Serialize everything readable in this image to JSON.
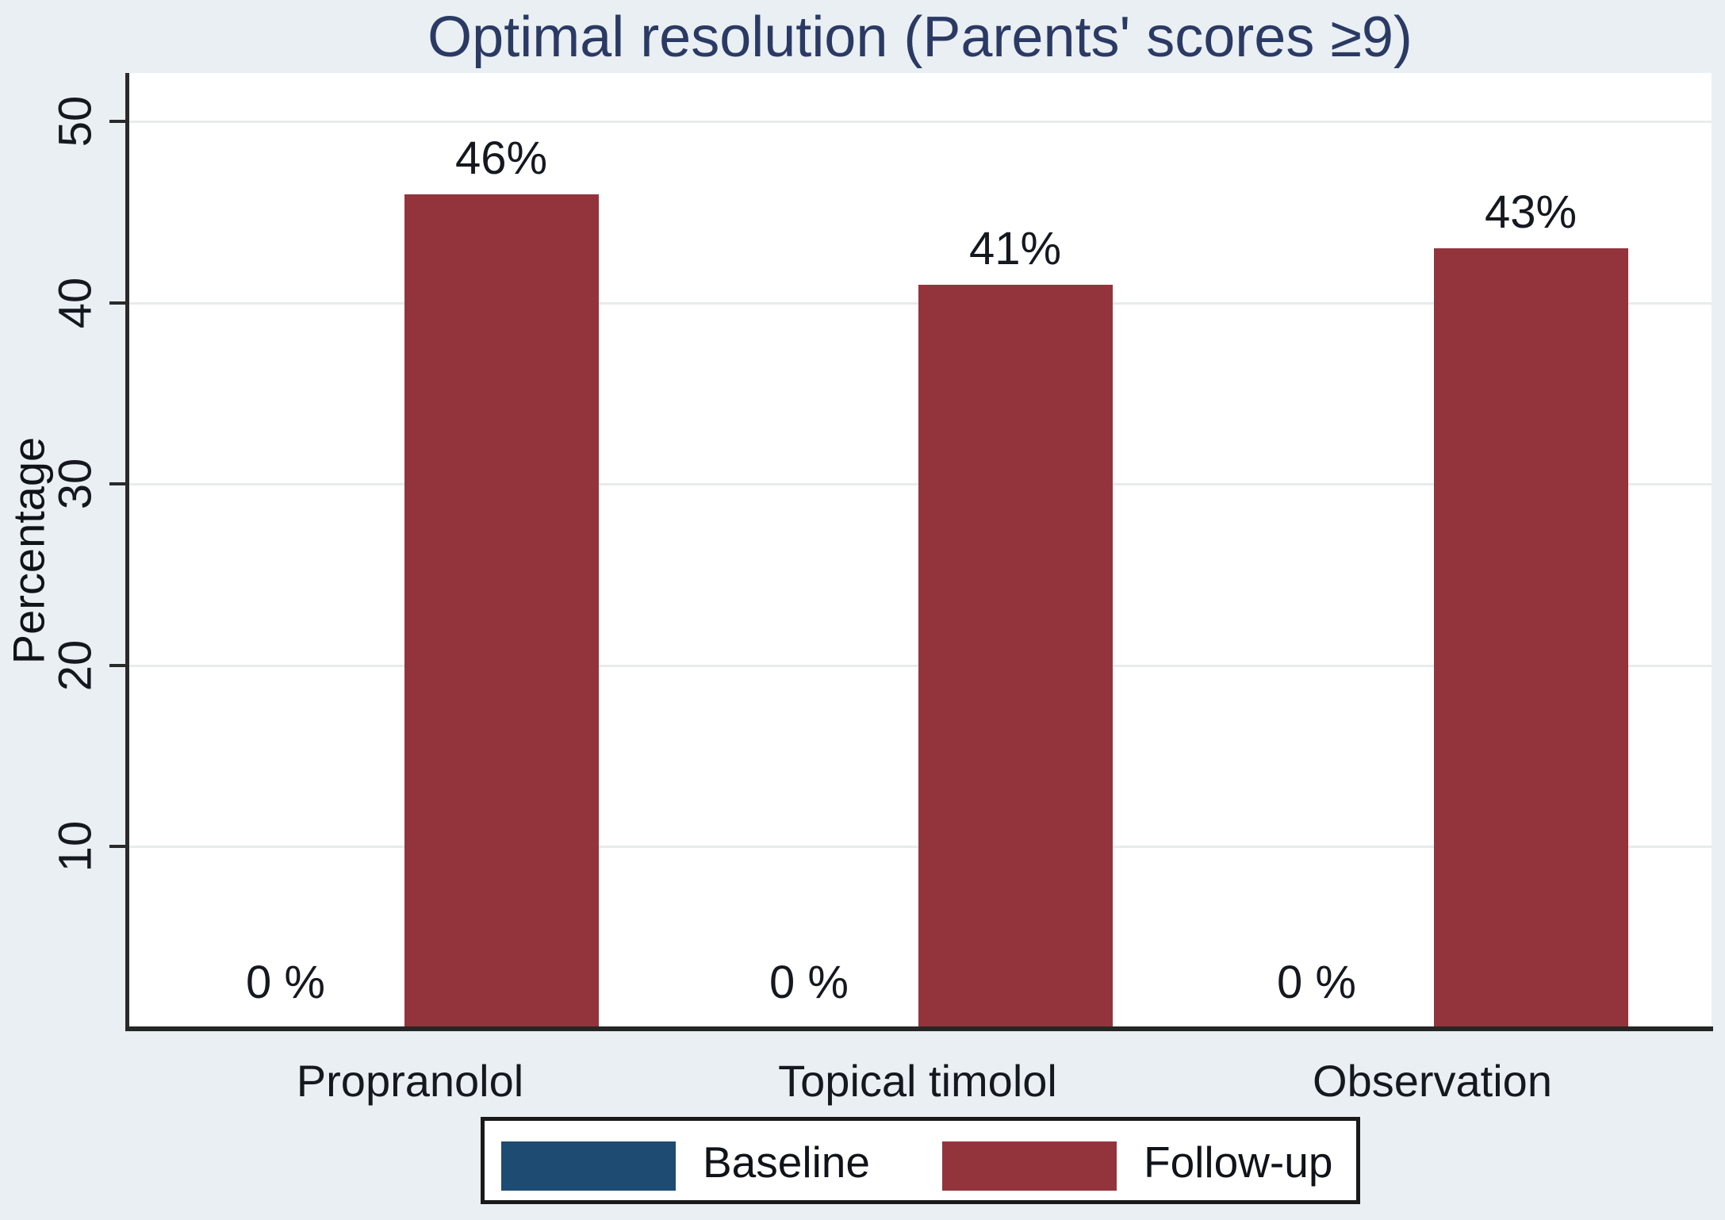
{
  "title": "Optimal resolution (Parents' scores ≥9)",
  "y_axis_title": "Percentage",
  "chart_data": {
    "type": "bar",
    "title": "Optimal resolution (Parents' scores ≥9)",
    "xlabel": "",
    "ylabel": "Percentage",
    "ylim": [
      0,
      52.7
    ],
    "yticks": [
      10,
      20,
      30,
      40,
      50
    ],
    "grid": true,
    "legend_position": "bottom",
    "categories": [
      "Propranolol",
      "Topical timolol",
      "Observation"
    ],
    "series": [
      {
        "name": "Baseline",
        "color": "#1e4b72",
        "values": [
          0,
          0,
          0
        ],
        "labels": [
          "0 %",
          "0 %",
          "0 %"
        ]
      },
      {
        "name": "Follow-up",
        "color": "#93343c",
        "values": [
          46,
          41,
          43
        ],
        "labels": [
          "46%",
          "41%",
          "43%"
        ]
      }
    ]
  },
  "colors": {
    "background": "#e9eff2",
    "plot_background": "#ffffff",
    "title": "#2a3a64",
    "axis": "#2a2a2a",
    "gridline": "#e8ebeb",
    "baseline_series": "#1e4b72",
    "followup_series": "#93343c",
    "legend_border": "#1a1a1a"
  }
}
